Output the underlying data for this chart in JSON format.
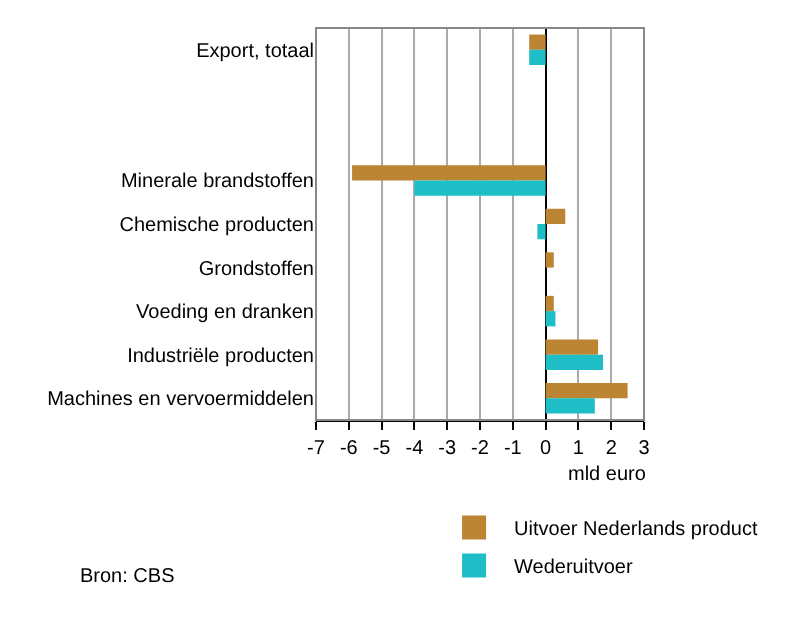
{
  "chart_data": {
    "type": "bar",
    "orientation": "horizontal",
    "categories": [
      "Export, totaal",
      null,
      null,
      "Minerale brandstoffen",
      "Chemische producten",
      "Grondstoffen",
      "Voeding en dranken",
      "Industriële producten",
      "Machines en vervoermiddelen"
    ],
    "series": [
      {
        "name": "Uitvoer Nederlands product",
        "color": "#bb8533",
        "values": [
          -0.5,
          null,
          null,
          -5.9,
          0.6,
          0.25,
          0.25,
          1.6,
          2.5
        ]
      },
      {
        "name": "Wederuitvoer",
        "color": "#1fbdc6",
        "values": [
          -0.5,
          null,
          null,
          -4.0,
          -0.25,
          null,
          0.3,
          1.75,
          1.5
        ]
      }
    ],
    "xlim": [
      -7,
      3
    ],
    "xticks": [
      -7,
      -6,
      -5,
      -4,
      -3,
      -2,
      -1,
      0,
      1,
      2,
      3
    ],
    "xlabel": "mld euro",
    "grid": "x",
    "legend": "bottom",
    "annotations": [
      "Bron: CBS"
    ]
  }
}
